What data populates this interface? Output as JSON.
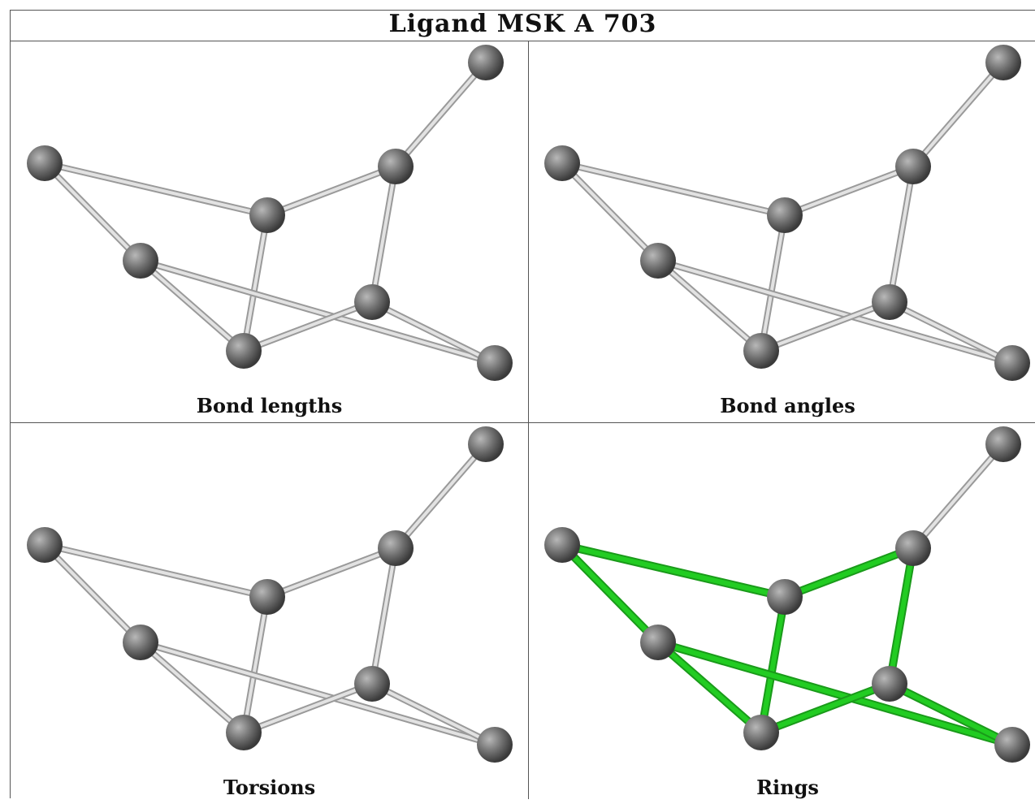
{
  "title": "Ligand MSK A 703",
  "panels": [
    {
      "caption": "Bond lengths",
      "bond_color": "gray"
    },
    {
      "caption": "Bond angles",
      "bond_color": "gray"
    },
    {
      "caption": "Torsions",
      "bond_color": "gray"
    },
    {
      "caption": "Rings",
      "bond_color": "green",
      "ring_bond_color": "#22cc22"
    }
  ],
  "atom_color": "#707070"
}
